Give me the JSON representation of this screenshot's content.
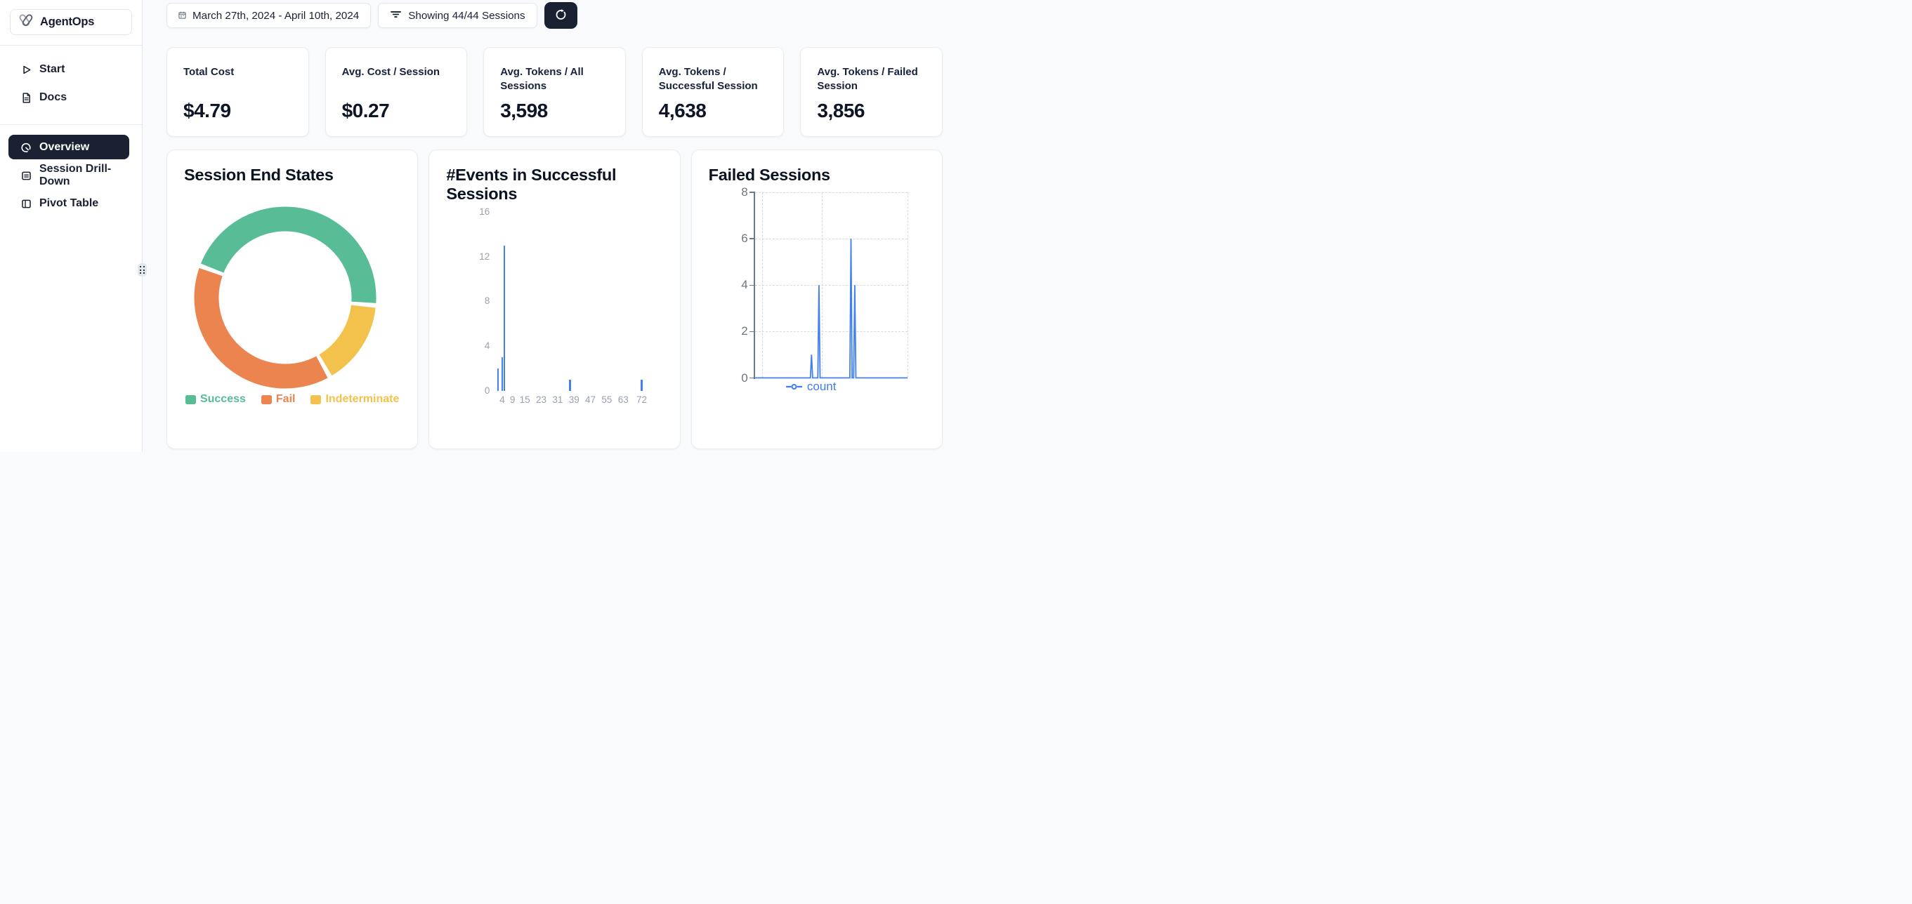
{
  "sidebar": {
    "brand": "AgentOps",
    "items": [
      {
        "label": "Start",
        "icon": "play-icon",
        "active": false
      },
      {
        "label": "Docs",
        "icon": "document-icon",
        "active": false
      },
      {
        "label": "Overview",
        "icon": "gauge-icon",
        "active": true
      },
      {
        "label": "Session Drill-Down",
        "icon": "list-box-icon",
        "active": false
      },
      {
        "label": "Pivot Table",
        "icon": "pivot-layout-icon",
        "active": false
      }
    ]
  },
  "topbar": {
    "date_range": "March 27th, 2024 - April 10th, 2024",
    "sessions_filter": "Showing 44/44 Sessions",
    "icons": [
      "calendar-icon",
      "filter-icon",
      "refresh-icon"
    ]
  },
  "stats": [
    {
      "label": "Total Cost",
      "value": "$4.79"
    },
    {
      "label": "Avg. Cost / Session",
      "value": "$0.27"
    },
    {
      "label": "Avg. Tokens / All Sessions",
      "value": "3,598"
    },
    {
      "label": "Avg. Tokens / Successful Session",
      "value": "4,638"
    },
    {
      "label": "Avg. Tokens / Failed Session",
      "value": "3,856"
    }
  ],
  "colors": {
    "navy": "#1a2133",
    "success_green": "#58bd96",
    "fail_orange": "#ec8450",
    "indeterminate_yellow": "#f3c24c",
    "chart_blue": "#4080f0",
    "page_bg": "#f8fafc",
    "axis_gray": "#99a1ae"
  },
  "chart_data": [
    {
      "type": "pie",
      "variant": "donut",
      "title": "Session End States",
      "labels": [
        "Success",
        "Fail",
        "Indeterminate"
      ],
      "values_pct_est": [
        46,
        39,
        15
      ],
      "colors": [
        "#58bd96",
        "#ec8450",
        "#f3c24c"
      ],
      "start_angle_deg": 292,
      "gap_deg": 3,
      "clockwise_draw_order": [
        0,
        2,
        1
      ],
      "legend_position": "bottom"
    },
    {
      "type": "bar",
      "title": "#Events in Successful Sessions",
      "x_ticks": [
        4,
        9,
        15,
        23,
        31,
        39,
        47,
        55,
        63,
        72
      ],
      "y_ticks": [
        0,
        4,
        8,
        12,
        16
      ],
      "xlim": [
        0,
        74
      ],
      "ylim": [
        0,
        16
      ],
      "bar_color": "#4080f0",
      "grid": false,
      "bars": [
        {
          "x": 2,
          "count": 2
        },
        {
          "x": 4,
          "count": 3
        },
        {
          "x": 5,
          "count": 13
        },
        {
          "x": 37,
          "count": 1
        },
        {
          "x": 72,
          "count": 1
        }
      ]
    },
    {
      "type": "line",
      "title": "Failed Sessions",
      "y_ticks": [
        0,
        2,
        4,
        6,
        8
      ],
      "ylim": [
        0,
        8
      ],
      "grid": "dashed",
      "baseline_value": 0,
      "series": [
        {
          "name": "count",
          "color": "#4080f0"
        }
      ],
      "spikes": [
        {
          "x_frac": 0.37,
          "count": 1
        },
        {
          "x_frac": 0.419,
          "count": 4
        },
        {
          "x_frac": 0.629,
          "count": 6
        },
        {
          "x_frac": 0.654,
          "count": 4
        }
      ],
      "legend_position": "bottom"
    }
  ]
}
